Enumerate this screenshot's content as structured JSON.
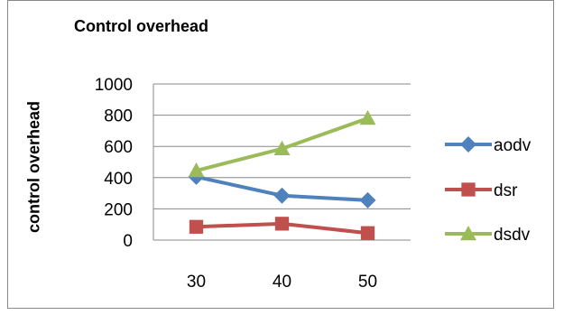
{
  "chart_data": {
    "type": "line",
    "title": "Control overhead",
    "xlabel": "",
    "ylabel": "control overhead",
    "categories": [
      "30",
      "40",
      "50"
    ],
    "ylim": [
      0,
      1000
    ],
    "yticks": [
      "0",
      "200",
      "400",
      "600",
      "800",
      "1000"
    ],
    "grid": true,
    "legend_position": "right",
    "series": [
      {
        "name": "aodv",
        "values": [
          405,
          285,
          255
        ],
        "color": "#4F81BD",
        "marker": "diamond"
      },
      {
        "name": "dsr",
        "values": [
          85,
          105,
          45
        ],
        "color": "#C0504D",
        "marker": "square"
      },
      {
        "name": "dsdv",
        "values": [
          445,
          585,
          780
        ],
        "color": "#9BBB59",
        "marker": "triangle"
      }
    ]
  }
}
